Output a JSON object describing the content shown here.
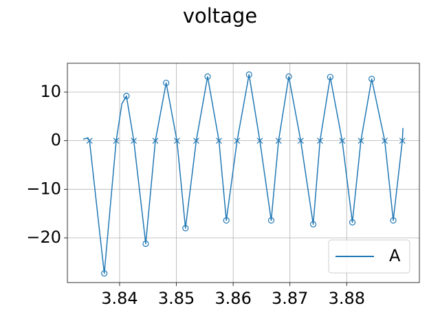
{
  "chart_data": {
    "type": "line",
    "title": "voltage",
    "series": [
      {
        "name": "A",
        "color": "#1f77b4",
        "x": [
          3.8336,
          3.8344,
          3.8347,
          3.8365,
          3.8373,
          3.8394,
          3.8404,
          3.8412,
          3.8425,
          3.8446,
          3.8463,
          3.8482,
          3.8501,
          3.8516,
          3.8535,
          3.8555,
          3.8575,
          3.8588,
          3.8607,
          3.8628,
          3.8647,
          3.8667,
          3.868,
          3.8698,
          3.8719,
          3.8741,
          3.8753,
          3.8771,
          3.8792,
          3.881,
          3.8825,
          3.8844,
          3.8867,
          3.8882,
          3.8898,
          3.8899
        ],
        "values": [
          0.3,
          0.6,
          0,
          -19,
          -27.3,
          0,
          7.6,
          9.2,
          0,
          -21.2,
          0,
          11.9,
          0,
          -18,
          0,
          13.2,
          0,
          -16.4,
          0,
          13.6,
          0,
          -16.4,
          0,
          13.2,
          0,
          -17.2,
          0,
          13.1,
          0,
          -16.8,
          0,
          12.7,
          0,
          -16.4,
          0,
          2.6
        ]
      }
    ],
    "peak_markers": {
      "x": [
        3.8373,
        3.8412,
        3.8446,
        3.8482,
        3.8516,
        3.8555,
        3.8588,
        3.8628,
        3.8667,
        3.8698,
        3.8741,
        3.8771,
        3.881,
        3.8844,
        3.8882
      ],
      "values": [
        -27.3,
        9.2,
        -21.2,
        11.9,
        -18,
        13.2,
        -16.4,
        13.6,
        -16.4,
        13.2,
        -17.2,
        13.1,
        -16.8,
        12.7,
        -16.4
      ]
    },
    "zero_markers": {
      "x": [
        3.8347,
        3.8394,
        3.8425,
        3.8463,
        3.8501,
        3.8535,
        3.8575,
        3.8607,
        3.8647,
        3.868,
        3.8719,
        3.8753,
        3.8792,
        3.8825,
        3.8867,
        3.8898
      ],
      "values": [
        0,
        0,
        0,
        0,
        0,
        0,
        0,
        0,
        0,
        0,
        0,
        0,
        0,
        0,
        0,
        0
      ]
    },
    "xlim": [
      3.8308,
      3.8928
    ],
    "xticks": [
      3.84,
      3.85,
      3.86,
      3.87,
      3.88
    ],
    "ylim": [
      -29.2,
      15.94
    ],
    "yticks": [
      {
        "value": -20,
        "label": "−20"
      },
      {
        "value": -10,
        "label": "−10"
      },
      0,
      10
    ],
    "grid": true,
    "legend": "lower right"
  }
}
